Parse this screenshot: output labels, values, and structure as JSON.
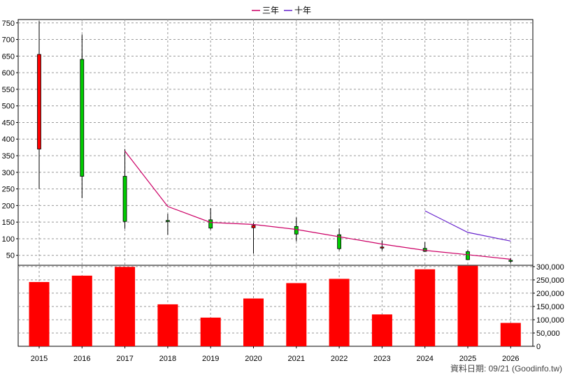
{
  "chart_data": {
    "type": "candlestick-with-volume",
    "categories": [
      "2015",
      "2016",
      "2017",
      "2018",
      "2019",
      "2020",
      "2021",
      "2022",
      "2023",
      "2024",
      "2025",
      "2026"
    ],
    "price_axis": {
      "ylim": [
        20,
        760
      ],
      "ticks": [
        50,
        100,
        150,
        200,
        250,
        300,
        350,
        400,
        450,
        500,
        550,
        600,
        650,
        700,
        750
      ]
    },
    "volume_axis": {
      "ylim": [
        0,
        305000
      ],
      "ticks": [
        0,
        50000,
        100000,
        150000,
        200000,
        250000,
        300000
      ],
      "tick_labels": [
        "0",
        "50,000",
        "100,000",
        "150,000",
        "200,000",
        "250,000",
        "300,000"
      ]
    },
    "candles": [
      {
        "open": 370,
        "close": 655,
        "high": 755,
        "low": 250
      },
      {
        "open": 640,
        "close": 288,
        "high": 715,
        "low": 222
      },
      {
        "open": 288,
        "close": 152,
        "high": 370,
        "low": 130
      },
      {
        "open": 155,
        "close": 152,
        "high": 175,
        "low": 112
      },
      {
        "open": 157,
        "close": 132,
        "high": 192,
        "low": 128
      },
      {
        "open": 133,
        "close": 140,
        "high": 148,
        "low": 55
      },
      {
        "open": 137,
        "close": 114,
        "high": 164,
        "low": 92
      },
      {
        "open": 112,
        "close": 70,
        "high": 131,
        "low": 65
      },
      {
        "open": 75,
        "close": 75,
        "high": 95,
        "low": 65
      },
      {
        "open": 71,
        "close": 62,
        "high": 90,
        "low": 60
      },
      {
        "open": 61,
        "close": 37,
        "high": 67,
        "low": 36
      },
      {
        "open": 35,
        "close": 33,
        "high": 42,
        "low": 27
      }
    ],
    "volume": [
      242000,
      266000,
      299000,
      158000,
      108000,
      180000,
      238000,
      254000,
      120000,
      290000,
      303000,
      88000
    ],
    "lines": [
      {
        "name": "三年",
        "color": "#cc0066",
        "values": [
          null,
          null,
          364,
          197,
          149,
          143,
          128,
          106,
          84,
          65,
          52,
          38
        ]
      },
      {
        "name": "十年",
        "color": "#6622cc",
        "values": [
          null,
          null,
          null,
          null,
          null,
          null,
          null,
          null,
          null,
          184,
          119,
          93
        ]
      }
    ],
    "legend": [
      "三年",
      "十年"
    ],
    "colors": {
      "up": "#ff0000",
      "down": "#00cc00",
      "volume": "#ff0000",
      "grid": "#999999"
    }
  },
  "footer": "資料日期: 09/21  (Goodinfo.tw)"
}
